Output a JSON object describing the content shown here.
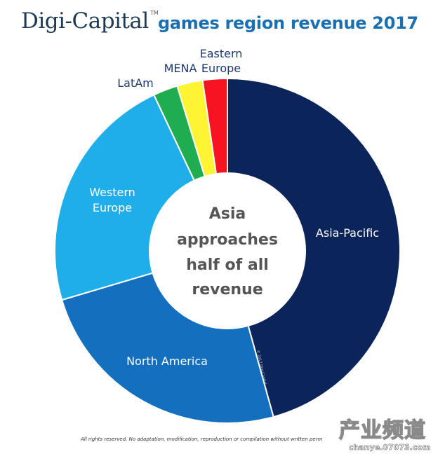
{
  "header": {
    "brand": "Digi-Capital",
    "trademark": "TM",
    "subtitle": "games region revenue 2017"
  },
  "center_text": [
    "Asia",
    "approaches",
    "half of all",
    "revenue"
  ],
  "copyright_rotated": "© 2017 Digi-Capital",
  "footer": "All rights reserved. No adaptation, modification, reproduction or compilation without written perm",
  "watermark": {
    "cn": "产业频道",
    "url": "chanye.07073.com"
  },
  "colors": {
    "Asia-Pacific": "#0b2459",
    "North America": "#1470bf",
    "Western Europe": "#1eaeea",
    "LatAm": "#1fad4f",
    "MENA": "#fff433",
    "Eastern Europe": "#f7131f",
    "outside_label": "#1d3a6e",
    "center_text": "#555555"
  },
  "chart_data": {
    "type": "pie",
    "subtype": "donut",
    "title": "Digi-Capital games region revenue 2017",
    "center_annotation": "Asia approaches half of all revenue",
    "unit": "share of revenue (%)",
    "categories": [
      "Asia-Pacific",
      "North America",
      "Western Europe",
      "LatAm",
      "MENA",
      "Eastern Europe"
    ],
    "values": [
      45.7,
      24.7,
      22.6,
      2.3,
      2.4,
      2.3
    ],
    "start_angle": "12 o'clock",
    "direction": "clockwise",
    "legend": "none (labels on/near slices)"
  }
}
